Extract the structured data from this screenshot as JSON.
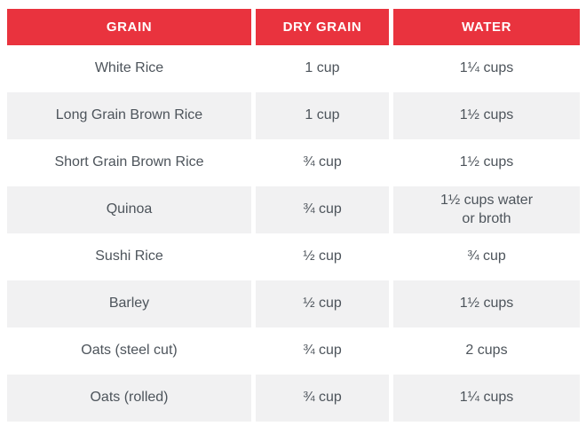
{
  "colors": {
    "header_bg": "#e9333e",
    "header_text": "#ffffff",
    "row_alt_bg": "#f1f1f2",
    "body_text": "#4d545b",
    "page_bg": "#ffffff"
  },
  "table": {
    "columns": [
      {
        "label": "GRAIN"
      },
      {
        "label": "DRY GRAIN"
      },
      {
        "label": "WATER"
      }
    ],
    "rows": [
      {
        "grain": "White Rice",
        "dry": "1 cup",
        "water": "1¼ cups"
      },
      {
        "grain": "Long Grain Brown Rice",
        "dry": "1 cup",
        "water": "1½ cups"
      },
      {
        "grain": "Short Grain Brown Rice",
        "dry": "¾ cup",
        "water": "1½ cups"
      },
      {
        "grain": "Quinoa",
        "dry": "¾ cup",
        "water": "1½ cups water\nor broth"
      },
      {
        "grain": "Sushi Rice",
        "dry": "½ cup",
        "water": "¾ cup"
      },
      {
        "grain": "Barley",
        "dry": "½ cup",
        "water": "1½ cups"
      },
      {
        "grain": "Oats (steel cut)",
        "dry": "¾ cup",
        "water": "2 cups"
      },
      {
        "grain": "Oats (rolled)",
        "dry": "¾ cup",
        "water": "1¼ cups"
      }
    ]
  }
}
